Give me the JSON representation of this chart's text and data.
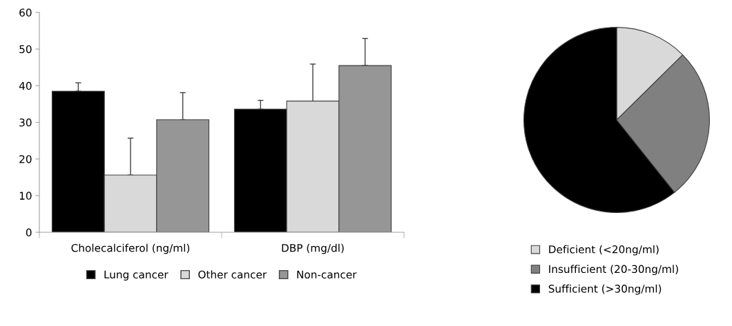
{
  "chart_data": [
    {
      "type": "bar",
      "categories": [
        "Cholecalciferol (ng/ml)",
        "DBP (mg/dl)"
      ],
      "series": [
        {
          "name": "Lung cancer",
          "color": "#000000",
          "values": [
            38.5,
            33.6
          ],
          "errors": [
            [
              38.5,
              40.8
            ],
            [
              33.6,
              36.0
            ]
          ]
        },
        {
          "name": "Other cancer",
          "color": "#d9d9d9",
          "values": [
            15.6,
            35.8
          ],
          "errors": [
            [
              15.6,
              25.7
            ],
            [
              35.8,
              45.9
            ]
          ]
        },
        {
          "name": "Non-cancer",
          "color": "#969696",
          "values": [
            30.7,
            45.5
          ],
          "errors": [
            [
              30.7,
              38.1
            ],
            [
              45.5,
              52.9
            ]
          ]
        }
      ],
      "ylim": [
        0,
        60
      ],
      "yticks": [
        0,
        10,
        20,
        30,
        40,
        50,
        60
      ],
      "grid": false,
      "legend": "bottom"
    },
    {
      "type": "pie",
      "categories": [
        "Deficient (<20ng/ml)",
        "Insufficient (20-30ng/ml)",
        "Sufficient (>30ng/ml)"
      ],
      "values": [
        12.6,
        26.7,
        60.7
      ],
      "colors": [
        "#d9d9d9",
        "#808080",
        "#000000"
      ],
      "legend": "bottom"
    }
  ]
}
